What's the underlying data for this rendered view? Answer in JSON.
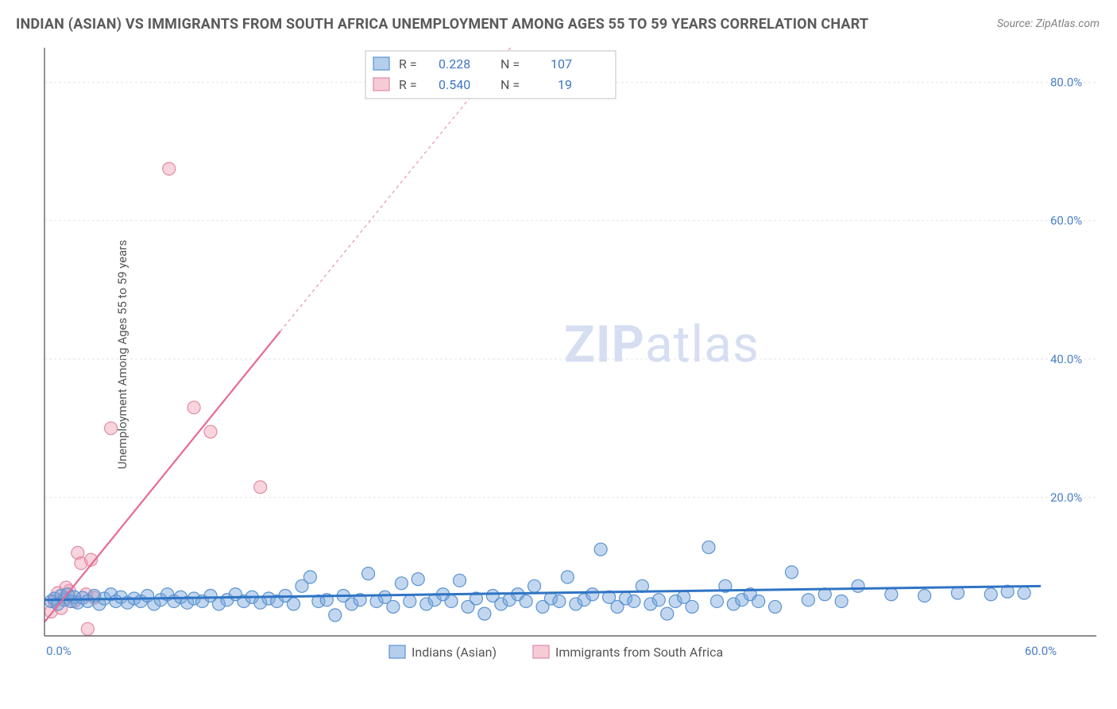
{
  "title": "INDIAN (ASIAN) VS IMMIGRANTS FROM SOUTH AFRICA UNEMPLOYMENT AMONG AGES 55 TO 59 YEARS CORRELATION CHART",
  "source": "Source: ZipAtlas.com",
  "ylabel": "Unemployment Among Ages 55 to 59 years",
  "watermark_a": "ZIP",
  "watermark_b": "atlas",
  "chart": {
    "type": "scatter",
    "background_color": "#ffffff",
    "grid_color": "#e5e5e5",
    "axis_color": "#666666",
    "tick_label_color": "#4a7ec7",
    "xlim": [
      0,
      60
    ],
    "ylim": [
      0,
      85
    ],
    "x_ticks": [
      {
        "v": 0,
        "label": "0.0%"
      },
      {
        "v": 60,
        "label": "60.0%"
      }
    ],
    "y_ticks": [
      {
        "v": 20,
        "label": "20.0%"
      },
      {
        "v": 40,
        "label": "40.0%"
      },
      {
        "v": 60,
        "label": "60.0%"
      },
      {
        "v": 80,
        "label": "80.0%"
      }
    ],
    "dot_radius": 8,
    "series": [
      {
        "name": "Indians (Asian)",
        "key": "blue",
        "color_fill": "rgba(120,166,220,0.45)",
        "color_stroke": "#5a93d1",
        "R": "0.228",
        "N": "107",
        "trend": {
          "x1": 0,
          "y1": 5.2,
          "x2": 60,
          "y2": 7.2,
          "color": "#2f74c4",
          "width": 3
        },
        "points": [
          [
            0.4,
            5.0
          ],
          [
            0.6,
            5.4
          ],
          [
            0.8,
            4.6
          ],
          [
            1.0,
            5.8
          ],
          [
            1.2,
            5.2
          ],
          [
            1.4,
            6.0
          ],
          [
            1.6,
            5.0
          ],
          [
            1.8,
            5.6
          ],
          [
            2.0,
            4.8
          ],
          [
            2.3,
            5.5
          ],
          [
            2.6,
            5.0
          ],
          [
            3.0,
            5.8
          ],
          [
            3.3,
            4.6
          ],
          [
            3.6,
            5.4
          ],
          [
            4.0,
            6.0
          ],
          [
            4.3,
            5.0
          ],
          [
            4.6,
            5.6
          ],
          [
            5.0,
            4.8
          ],
          [
            5.4,
            5.4
          ],
          [
            5.8,
            5.0
          ],
          [
            6.2,
            5.8
          ],
          [
            6.6,
            4.6
          ],
          [
            7.0,
            5.2
          ],
          [
            7.4,
            6.0
          ],
          [
            7.8,
            5.0
          ],
          [
            8.2,
            5.6
          ],
          [
            8.6,
            4.8
          ],
          [
            9.0,
            5.4
          ],
          [
            9.5,
            5.0
          ],
          [
            10.0,
            5.8
          ],
          [
            10.5,
            4.6
          ],
          [
            11.0,
            5.2
          ],
          [
            11.5,
            6.0
          ],
          [
            12.0,
            5.0
          ],
          [
            12.5,
            5.6
          ],
          [
            13.0,
            4.8
          ],
          [
            13.5,
            5.4
          ],
          [
            14.0,
            5.0
          ],
          [
            14.5,
            5.8
          ],
          [
            15.0,
            4.6
          ],
          [
            15.5,
            7.2
          ],
          [
            16.0,
            8.5
          ],
          [
            16.5,
            5.0
          ],
          [
            17.0,
            5.2
          ],
          [
            17.5,
            3.0
          ],
          [
            18.0,
            5.8
          ],
          [
            18.5,
            4.6
          ],
          [
            19.0,
            5.2
          ],
          [
            19.5,
            9.0
          ],
          [
            20.0,
            5.0
          ],
          [
            20.5,
            5.6
          ],
          [
            21.0,
            4.2
          ],
          [
            21.5,
            7.6
          ],
          [
            22.0,
            5.0
          ],
          [
            22.5,
            8.2
          ],
          [
            23.0,
            4.6
          ],
          [
            23.5,
            5.2
          ],
          [
            24.0,
            6.0
          ],
          [
            24.5,
            5.0
          ],
          [
            25.0,
            8.0
          ],
          [
            25.5,
            4.2
          ],
          [
            26.0,
            5.4
          ],
          [
            26.5,
            3.2
          ],
          [
            27.0,
            5.8
          ],
          [
            27.5,
            4.6
          ],
          [
            28.0,
            5.2
          ],
          [
            28.5,
            6.0
          ],
          [
            29.0,
            5.0
          ],
          [
            29.5,
            7.2
          ],
          [
            30.0,
            4.2
          ],
          [
            30.5,
            5.4
          ],
          [
            31.0,
            5.0
          ],
          [
            31.5,
            8.5
          ],
          [
            32.0,
            4.6
          ],
          [
            32.5,
            5.2
          ],
          [
            33.0,
            6.0
          ],
          [
            33.5,
            12.5
          ],
          [
            34.0,
            5.6
          ],
          [
            34.5,
            4.2
          ],
          [
            35.0,
            5.4
          ],
          [
            35.5,
            5.0
          ],
          [
            36.0,
            7.2
          ],
          [
            36.5,
            4.6
          ],
          [
            37.0,
            5.2
          ],
          [
            37.5,
            3.2
          ],
          [
            38.0,
            5.0
          ],
          [
            38.5,
            5.6
          ],
          [
            39.0,
            4.2
          ],
          [
            40.0,
            12.8
          ],
          [
            40.5,
            5.0
          ],
          [
            41.0,
            7.2
          ],
          [
            41.5,
            4.6
          ],
          [
            42.0,
            5.2
          ],
          [
            42.5,
            6.0
          ],
          [
            43.0,
            5.0
          ],
          [
            44.0,
            4.2
          ],
          [
            45.0,
            9.2
          ],
          [
            46.0,
            5.2
          ],
          [
            47.0,
            6.0
          ],
          [
            48.0,
            5.0
          ],
          [
            49.0,
            7.2
          ],
          [
            51.0,
            6.0
          ],
          [
            53.0,
            5.8
          ],
          [
            55.0,
            6.2
          ],
          [
            57.0,
            6.0
          ],
          [
            58.0,
            6.4
          ],
          [
            59.0,
            6.2
          ]
        ]
      },
      {
        "name": "Immigrants from South Africa",
        "key": "pink",
        "color_fill": "rgba(240,160,180,0.45)",
        "color_stroke": "#e18aa5",
        "R": "0.540",
        "N": "19",
        "trend": {
          "x1": 0,
          "y1": 2.0,
          "x2": 14.2,
          "y2": 44.0,
          "x3": 28.4,
          "y3": 86.0,
          "split": 14.2,
          "color": "#e76a91",
          "width": 2.2
        },
        "points": [
          [
            0.4,
            3.5
          ],
          [
            0.6,
            5.0
          ],
          [
            0.8,
            6.2
          ],
          [
            1.0,
            4.0
          ],
          [
            1.2,
            5.5
          ],
          [
            1.5,
            6.5
          ],
          [
            1.8,
            5.0
          ],
          [
            2.0,
            12.0
          ],
          [
            2.2,
            10.5
          ],
          [
            2.5,
            6.0
          ],
          [
            2.6,
            1.0
          ],
          [
            2.8,
            11.0
          ],
          [
            3.0,
            5.5
          ],
          [
            4.0,
            30.0
          ],
          [
            7.5,
            67.5
          ],
          [
            9.0,
            33.0
          ],
          [
            10.0,
            29.5
          ],
          [
            13.0,
            21.5
          ],
          [
            1.3,
            7.0
          ]
        ]
      }
    ],
    "legend_top": {
      "rows": [
        {
          "swatch": "blue",
          "R_label": "R =",
          "R": "0.228",
          "N_label": "N =",
          "N": "107"
        },
        {
          "swatch": "pink",
          "R_label": "R =",
          "R": "0.540",
          "N_label": "N =",
          "N": "19"
        }
      ]
    },
    "legend_bottom": [
      {
        "swatch": "blue",
        "label": "Indians (Asian)"
      },
      {
        "swatch": "pink",
        "label": "Immigrants from South Africa"
      }
    ]
  }
}
